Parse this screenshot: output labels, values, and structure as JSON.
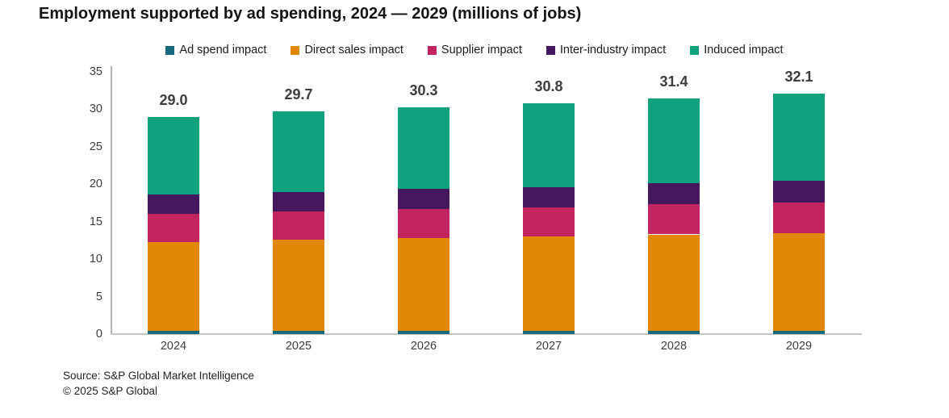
{
  "title": "Employment supported by ad spending, 2024 — 2029 (millions of jobs)",
  "source": {
    "line1": "Source: S&P Global Market Intelligence",
    "line2": "© 2025 S&P Global"
  },
  "chart_data": {
    "type": "bar",
    "stacked": true,
    "title": "Employment supported by ad spending, 2024 — 2029 (millions of jobs)",
    "categories": [
      "2024",
      "2025",
      "2026",
      "2027",
      "2028",
      "2029"
    ],
    "series": [
      {
        "name": "Ad spend impact",
        "color": "#16697C",
        "values": [
          0.4,
          0.4,
          0.4,
          0.4,
          0.4,
          0.4
        ]
      },
      {
        "name": "Direct sales impact",
        "color": "#E08704",
        "values": [
          11.9,
          12.2,
          12.4,
          12.6,
          12.9,
          13.1
        ]
      },
      {
        "name": "Supplier impact",
        "color": "#C1245F",
        "values": [
          3.7,
          3.8,
          3.9,
          3.9,
          4.0,
          4.1
        ]
      },
      {
        "name": "Inter-industry impact",
        "color": "#45175C",
        "values": [
          2.6,
          2.6,
          2.7,
          2.7,
          2.8,
          2.9
        ]
      },
      {
        "name": "Induced impact",
        "color": "#10A17E",
        "values": [
          10.4,
          10.7,
          10.9,
          11.2,
          11.3,
          11.6
        ]
      }
    ],
    "totals": [
      29.0,
      29.7,
      30.3,
      30.8,
      31.4,
      32.1
    ],
    "total_labels": [
      "29.0",
      "29.7",
      "30.3",
      "30.8",
      "31.4",
      "32.1"
    ],
    "xlabel": "",
    "ylabel": "",
    "ylim": [
      0,
      35
    ],
    "yticks": [
      0,
      5,
      10,
      15,
      20,
      25,
      30,
      35
    ],
    "grid": false,
    "legend_position": "top"
  }
}
